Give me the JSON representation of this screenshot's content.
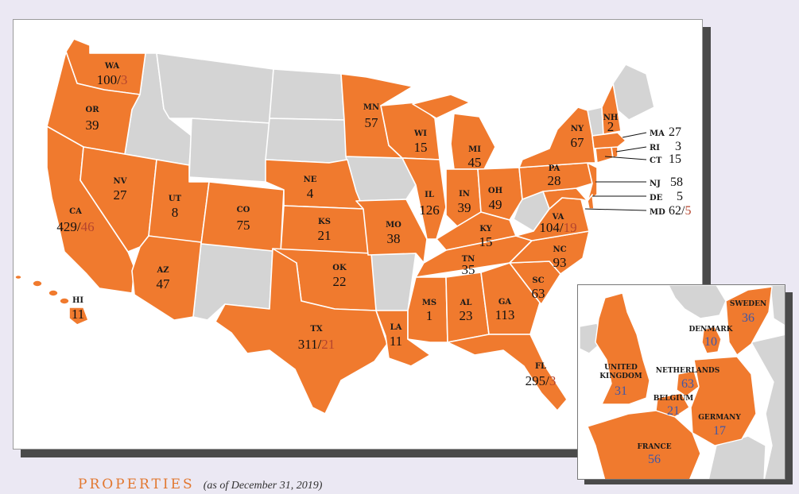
{
  "colors": {
    "accent": "#f07a2e",
    "muted_state": "#d4d4d4",
    "secondary_number": "#b5452e",
    "international_number": "#3f57a8",
    "title": "#e2772f",
    "background": "#ebe8f3"
  },
  "states": [
    {
      "code": "WA",
      "count": "100",
      "secondary": "3"
    },
    {
      "code": "OR",
      "count": "39"
    },
    {
      "code": "CA",
      "count": "429",
      "secondary": "46"
    },
    {
      "code": "NV",
      "count": "27"
    },
    {
      "code": "UT",
      "count": "8"
    },
    {
      "code": "AZ",
      "count": "47"
    },
    {
      "code": "CO",
      "count": "75"
    },
    {
      "code": "NE",
      "count": "4"
    },
    {
      "code": "KS",
      "count": "21"
    },
    {
      "code": "OK",
      "count": "22"
    },
    {
      "code": "TX",
      "count": "311",
      "secondary": "21"
    },
    {
      "code": "MN",
      "count": "57"
    },
    {
      "code": "MO",
      "count": "38"
    },
    {
      "code": "LA",
      "count": "11"
    },
    {
      "code": "WI",
      "count": "15"
    },
    {
      "code": "IL",
      "count": "126"
    },
    {
      "code": "MS",
      "count": "1"
    },
    {
      "code": "MI",
      "count": "45"
    },
    {
      "code": "IN",
      "count": "39"
    },
    {
      "code": "KY",
      "count": "15"
    },
    {
      "code": "TN",
      "count": "35"
    },
    {
      "code": "AL",
      "count": "23"
    },
    {
      "code": "GA",
      "count": "113"
    },
    {
      "code": "FL",
      "count": "295",
      "secondary": "3"
    },
    {
      "code": "OH",
      "count": "49"
    },
    {
      "code": "SC",
      "count": "63"
    },
    {
      "code": "NC",
      "count": "93"
    },
    {
      "code": "VA",
      "count": "104",
      "secondary": "19"
    },
    {
      "code": "PA",
      "count": "28"
    },
    {
      "code": "NY",
      "count": "67"
    },
    {
      "code": "NH",
      "count": "2"
    },
    {
      "code": "HI",
      "count": "11"
    }
  ],
  "callouts": [
    {
      "code": "MA",
      "count": "27"
    },
    {
      "code": "RI",
      "count": "3"
    },
    {
      "code": "CT",
      "count": "15"
    },
    {
      "code": "NJ",
      "count": "58"
    },
    {
      "code": "DE",
      "count": "5"
    },
    {
      "code": "MD",
      "count": "62",
      "secondary": "5"
    }
  ],
  "international": [
    {
      "name": "SWEDEN",
      "count": "36"
    },
    {
      "name": "DENMARK",
      "count": "10"
    },
    {
      "name": "NETHERLANDS",
      "count": "63"
    },
    {
      "name": "UNITED",
      "name2": "KINGDOM",
      "count": "31"
    },
    {
      "name": "BELGIUM",
      "count": "21"
    },
    {
      "name": "GERMANY",
      "count": "17"
    },
    {
      "name": "FRANCE",
      "count": "56"
    }
  ],
  "footer": {
    "title": "PROPERTIES",
    "subtitle": "(as of December 31, 2019)"
  }
}
